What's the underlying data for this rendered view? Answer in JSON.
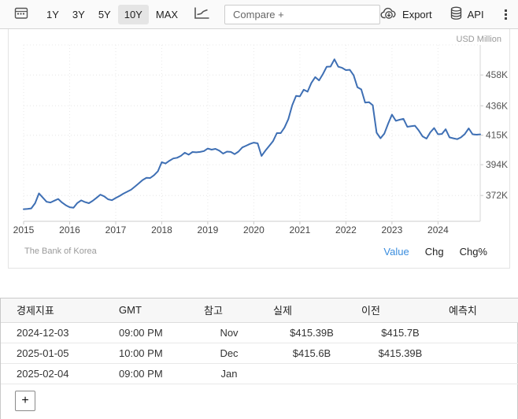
{
  "toolbar": {
    "ranges": [
      "1Y",
      "3Y",
      "5Y",
      "10Y",
      "MAX"
    ],
    "selected_range": "10Y",
    "compare_placeholder": "Compare +",
    "export_label": "Export",
    "api_label": "API"
  },
  "chart": {
    "unit_label": "USD Million",
    "source": "The Bank of Korea",
    "links": [
      "Value",
      "Chg",
      "Chg%"
    ],
    "active_link": "Value",
    "line_color": "#3e6fb4"
  },
  "chart_data": {
    "type": "line",
    "unit": "USD Million",
    "start": "2015-01",
    "frequency": "monthly",
    "x_tick_labels": [
      "2015",
      "2016",
      "2017",
      "2018",
      "2019",
      "2020",
      "2021",
      "2022",
      "2023",
      "2024"
    ],
    "y_tick_values": [
      372,
      394,
      415,
      436,
      458
    ],
    "y_tick_labels": [
      "372K",
      "394K",
      "415K",
      "436K",
      "458K"
    ],
    "y_range_bn": [
      351,
      480
    ],
    "grid": true,
    "legend": false,
    "values_usd_bn": [
      362.2,
      362.4,
      362.8,
      366.5,
      373.5,
      370.5,
      367.5,
      367.0,
      368.3,
      369.5,
      367.0,
      365.0,
      363.6,
      363.3,
      366.6,
      368.5,
      367.3,
      366.5,
      368.2,
      370.3,
      372.6,
      371.4,
      369.3,
      368.6,
      370.2,
      371.6,
      373.3,
      374.7,
      376.1,
      378.3,
      380.6,
      383.0,
      384.6,
      384.5,
      386.5,
      389.3,
      395.8,
      394.8,
      396.8,
      398.4,
      398.9,
      400.3,
      402.5,
      401.1,
      403.0,
      402.8,
      403.1,
      403.7,
      405.5,
      404.7,
      405.3,
      404.0,
      401.9,
      403.3,
      403.1,
      401.5,
      403.3,
      406.3,
      407.5,
      408.8,
      409.7,
      409.2,
      400.2,
      404.0,
      407.3,
      410.7,
      416.5,
      416.5,
      420.5,
      426.5,
      436.4,
      443.1,
      442.7,
      447.5,
      446.1,
      452.3,
      456.5,
      454.1,
      458.7,
      463.9,
      464.0,
      469.2,
      463.9,
      463.1,
      461.5,
      461.7,
      457.8,
      449.3,
      447.7,
      438.3,
      438.6,
      436.4,
      416.8,
      412.8,
      416.1,
      423.2,
      429.7,
      425.3,
      426.1,
      426.7,
      421.0,
      421.4,
      421.8,
      418.3,
      414.1,
      412.6,
      417.1,
      420.1,
      415.7,
      415.9,
      419.3,
      413.5,
      412.8,
      412.2,
      413.5,
      415.9,
      419.9,
      415.7,
      415.4,
      415.6
    ]
  },
  "table": {
    "headers": [
      "경제지표",
      "GMT",
      "참고",
      "실제",
      "이전",
      "예측치"
    ],
    "rows": [
      [
        "2024-12-03",
        "09:00 PM",
        "Nov",
        "$415.39B",
        "$415.7B",
        ""
      ],
      [
        "2025-01-05",
        "10:00 PM",
        "Dec",
        "$415.6B",
        "$415.39B",
        ""
      ],
      [
        "2025-02-04",
        "09:00 PM",
        "Jan",
        "",
        "",
        ""
      ]
    ],
    "add_button_label": "+"
  }
}
